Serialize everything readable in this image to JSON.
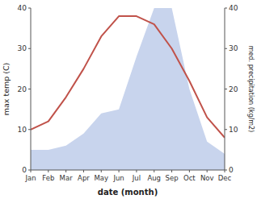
{
  "chart_data": {
    "type": "line",
    "xlabel": "date (month)",
    "ylabel": "max temp (C)",
    "y2label": "med. precipitation (kg/m2)",
    "categories": [
      "Jan",
      "Feb",
      "Mar",
      "Apr",
      "May",
      "Jun",
      "Jul",
      "Aug",
      "Sep",
      "Oct",
      "Nov",
      "Dec"
    ],
    "series": [
      {
        "type": "area",
        "axis": "y2",
        "color": "#c8d4ed",
        "values": [
          5,
          5,
          6,
          9,
          14,
          15,
          28,
          40,
          40,
          20,
          7,
          4
        ]
      },
      {
        "type": "line",
        "color": "#c0524a",
        "values": [
          10,
          12,
          18,
          25,
          33,
          38,
          38,
          36,
          30,
          22,
          13,
          8
        ]
      }
    ],
    "ylim": [
      0,
      40
    ],
    "yticks": [
      0,
      10,
      20,
      30,
      40
    ],
    "y2lim": [
      0,
      40
    ],
    "y2ticks": [
      0,
      10,
      20,
      30,
      40
    ],
    "grid": false
  }
}
